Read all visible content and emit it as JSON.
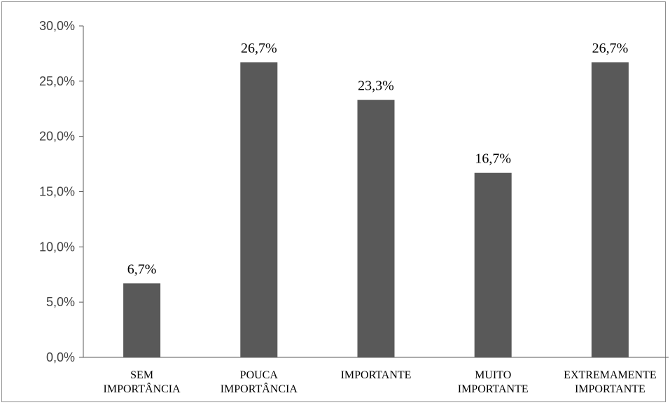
{
  "chart_data": {
    "type": "bar",
    "categories": [
      [
        "SEM",
        "IMPORTÂNCIA"
      ],
      [
        "POUCA",
        "IMPORTÂNCIA"
      ],
      [
        "IMPORTANTE"
      ],
      [
        "MUITO",
        "IMPORTANTE"
      ],
      [
        "EXTREMAMENTE",
        "IMPORTANTE"
      ]
    ],
    "values": [
      6.7,
      26.7,
      23.3,
      16.7,
      26.7
    ],
    "data_labels": [
      "6,7%",
      "26,7%",
      "23,3%",
      "16,7%",
      "26,7%"
    ],
    "y_ticks": [
      "0,0%",
      "5,0%",
      "10,0%",
      "15,0%",
      "20,0%",
      "25,0%",
      "30,0%"
    ],
    "ylim": [
      0,
      30
    ],
    "title": "",
    "xlabel": "",
    "ylabel": "",
    "grid": false,
    "legend": "none",
    "bar_color": "#595959"
  }
}
